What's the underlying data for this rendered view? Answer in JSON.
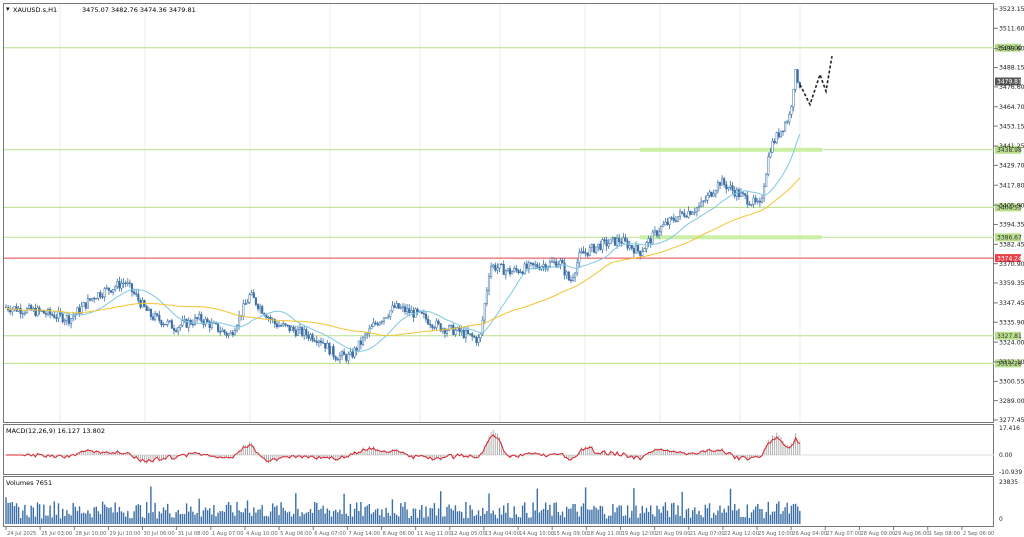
{
  "main_header": {
    "symbol": "XAUUSD.s,H1",
    "ohlc": "3475.07 3482.76 3474.36 3479.81"
  },
  "price_axis": {
    "ticks": [
      "3523.15",
      "3511.60",
      "3499.60",
      "3488.15",
      "3476.60",
      "3464.70",
      "3453.15",
      "3441.25",
      "3429.70",
      "3417.80",
      "3405.90",
      "3394.35",
      "3382.45",
      "3370.90",
      "3359.35",
      "3347.45",
      "3335.90",
      "3324.00",
      "3312.10",
      "3300.55",
      "3289.00",
      "3277.45"
    ]
  },
  "levels": [
    {
      "label": "3500.00",
      "color": "#b8e08c"
    },
    {
      "label": "3438.98",
      "color": "#b8e08c"
    },
    {
      "label": "3404.53",
      "color": "#b8e08c"
    },
    {
      "label": "3386.67",
      "color": "#b8e08c"
    },
    {
      "label": "3374.24",
      "color": "#e8404a"
    },
    {
      "label": "3327.81",
      "color": "#b8e08c"
    },
    {
      "label": "3311.28",
      "color": "#b8e08c"
    }
  ],
  "current_price_label": "3479.81",
  "macd_panel": {
    "header": "MACD(12,26,9) 16.127 13.802",
    "ticks": [
      "17.416",
      "0.00",
      "-10.939"
    ]
  },
  "volume_panel": {
    "header": "Volumes 7651",
    "ticks": [
      "23835",
      "0"
    ]
  },
  "time_axis": {
    "labels": [
      "24 Jul 2025",
      "25 Jul 03:00",
      "28 Jul 10:00",
      "29 Jul 10:00",
      "30 Jul 06:00",
      "31 Jul 08:00",
      "1 Aug 07:00",
      "4 Aug 10:00",
      "5 Aug 06:00",
      "6 Aug 07:00",
      "7 Aug 14:00",
      "8 Aug 06:00",
      "11 Aug 11:00",
      "12 Aug 05:00",
      "13 Aug 04:00",
      "14 Aug 10:00",
      "15 Aug 09:00",
      "18 Aug 11:00",
      "19 Aug 12:00",
      "20 Aug 09:00",
      "21 Aug 07:00",
      "22 Aug 12:00",
      "25 Aug 10:00",
      "26 Aug 04:00",
      "27 Aug 07:00",
      "28 Aug 09:00",
      "29 Aug 06:00",
      "1 Sep 08:00",
      "2 Sep 06:00"
    ]
  },
  "colors": {
    "grid": "#eeeeee",
    "candle": "#3a6ea5",
    "ma_fast": "#7ec8e3",
    "ma_slow": "#f4c430",
    "signal": "#d9232e",
    "histogram": "#b0b0b0",
    "volume": "#3a6ea5",
    "sep": "#777777"
  },
  "chart_data": {
    "type": "candlestick",
    "ylim": [
      3277.45,
      3523.15
    ],
    "macd_ylim": [
      -10.939,
      17.416
    ],
    "volume_ylim": [
      0,
      23835
    ]
  }
}
